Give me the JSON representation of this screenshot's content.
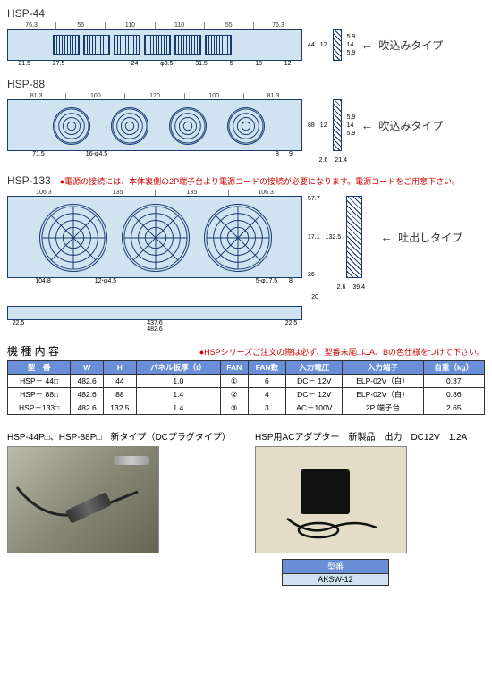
{
  "colors": {
    "panel_fill": "#cfe4f0",
    "panel_stroke": "#1a3a6e",
    "header_bg": "#6a8fd6",
    "red": "#c00"
  },
  "hsp44": {
    "label": "HSP-44",
    "top_dims": [
      "76.3",
      "55",
      "110",
      "110",
      "55",
      "76.3"
    ],
    "side_dim_top": "12",
    "side_dims": [
      "5.9",
      "14",
      "5.9"
    ],
    "arrow_label": "吹込みタイプ",
    "height_dim": "44",
    "bottom_dims": [
      "21.5",
      "27.5",
      "",
      "24",
      "φ3.5",
      "31.5",
      "5",
      "",
      "",
      "18",
      "12"
    ]
  },
  "hsp88": {
    "label": "HSP-88",
    "top_dims": [
      "81.3",
      "100",
      "120",
      "100",
      "81.3"
    ],
    "side_dim_top": "12",
    "side_dims": [
      "5.9",
      "14",
      "5.9"
    ],
    "arrow_label": "吹込みタイプ",
    "height_dim": "88",
    "bottom_dims_left": "71.5",
    "bottom_dims_holes": "16-φ4.5",
    "bottom_small": [
      "8",
      "9",
      "21.4",
      "2.6"
    ]
  },
  "hsp133": {
    "label": "HSP-133",
    "note": "●電源の接続には、本体裏側の2P端子台より電源コードの接続が必要になります。電源コードをご用意下さい。",
    "top_dims": [
      "106.3",
      "135",
      "135",
      "106.3"
    ],
    "arrow_label": "吐出しタイプ",
    "right_dims": [
      "57.7",
      "17.1",
      "26",
      "132.5"
    ],
    "height_dim": "133",
    "bottom_dims_left": "104.8",
    "bottom_dims_holes": "12-φ4.5",
    "bottom_dims_right": "5-φ17.5",
    "bottom_small": [
      "8",
      "2.6",
      "39.4"
    ],
    "bar_dims": [
      "22.5",
      "437.6",
      "22.5",
      "482.6"
    ]
  },
  "table": {
    "title": "機 種 内 容",
    "note": "●HSPシリーズご注文の際は必ず、型番末尾□にA、Bの色仕様をつけて下さい。",
    "columns": [
      "型　番",
      "W",
      "H",
      "パネル板厚（t）",
      "FAN",
      "FAN数",
      "入力電圧",
      "入力端子",
      "自重（kg）"
    ],
    "rows": [
      [
        "HSP－ 44□",
        "482.6",
        "44",
        "1.0",
        "①",
        "6",
        "DC－ 12V",
        "ELP-02V（白）",
        "0.37"
      ],
      [
        "HSP－ 88□",
        "482.6",
        "88",
        "1.4",
        "②",
        "4",
        "DC－ 12V",
        "ELP-02V（白）",
        "0.86"
      ],
      [
        "HSP－133□",
        "482.6",
        "132.5",
        "1.4",
        "③",
        "3",
        "AC－100V",
        "2P 端子台",
        "2.65"
      ]
    ]
  },
  "photos": {
    "left_caption": "HSP-44P□、HSP-88P□　新タイプ（DCプラグタイプ）",
    "right_caption": "HSP用ACアダプター　新製品　出力　DC12V　1.2A",
    "model_box_header": "型番",
    "model_box_value": "AKSW-12"
  }
}
